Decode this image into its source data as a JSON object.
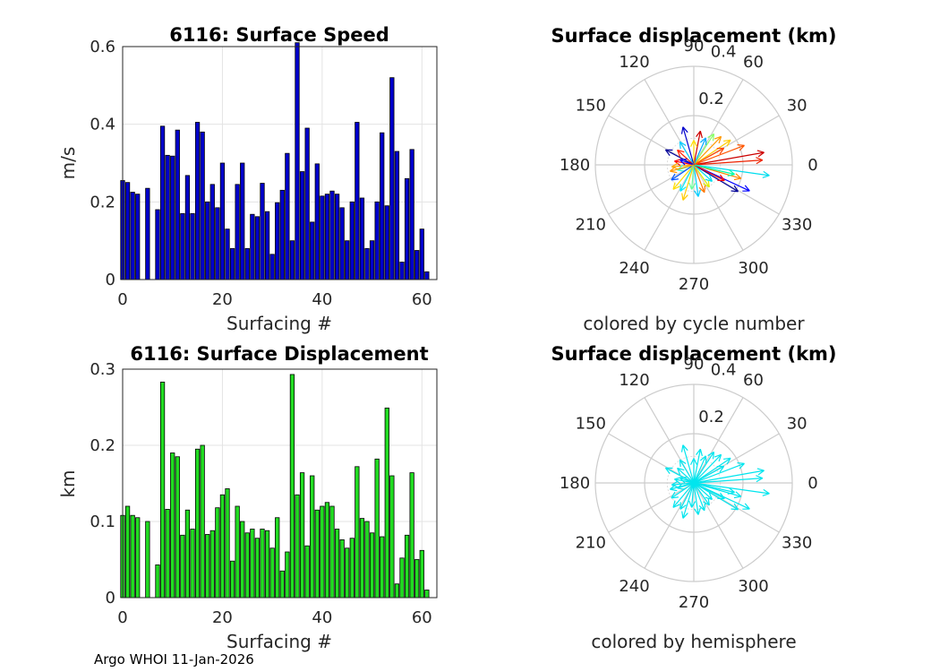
{
  "footer": "Argo WHOI 11-Jan-2026",
  "chart_data": [
    {
      "type": "bar",
      "title": "6116: Surface Speed",
      "xlabel": "Surfacing #",
      "ylabel": "m/s",
      "xlim": [
        0,
        63
      ],
      "ylim": [
        0,
        0.6
      ],
      "xticks": [
        0,
        20,
        40,
        60
      ],
      "yticks": [
        0,
        0.2,
        0.4,
        0.6
      ],
      "ytick_labels": [
        "0",
        "0.2",
        "0.4",
        "0.6"
      ],
      "bar_color": "#0000cc",
      "x": [
        0,
        1,
        2,
        3,
        4,
        5,
        6,
        7,
        8,
        9,
        10,
        11,
        12,
        13,
        14,
        15,
        16,
        17,
        18,
        19,
        20,
        21,
        22,
        23,
        24,
        25,
        26,
        27,
        28,
        29,
        30,
        31,
        32,
        33,
        34,
        35,
        36,
        37,
        38,
        39,
        40,
        41,
        42,
        43,
        44,
        45,
        46,
        47,
        48,
        49,
        50,
        51,
        52,
        53,
        54,
        55,
        56,
        57,
        58,
        59,
        60,
        61
      ],
      "values": [
        0.255,
        0.25,
        0.225,
        0.22,
        0,
        0.235,
        0,
        0.18,
        0.395,
        0.32,
        0.318,
        0.385,
        0.17,
        0.268,
        0.17,
        0.405,
        0.38,
        0.2,
        0.245,
        0.185,
        0.3,
        0.13,
        0.08,
        0.245,
        0.3,
        0.08,
        0.168,
        0.162,
        0.248,
        0.175,
        0.065,
        0.198,
        0.23,
        0.325,
        0.1,
        0.61,
        0.278,
        0.39,
        0.148,
        0.298,
        0.215,
        0.22,
        0.228,
        0.22,
        0.185,
        0.1,
        0.2,
        0.405,
        0.21,
        0.08,
        0.1,
        0.2,
        0.378,
        0.19,
        0.52,
        0.33,
        0.045,
        0.26,
        0.335,
        0.075,
        0.13,
        0.02
      ]
    },
    {
      "type": "bar",
      "title": "6116: Surface Displacement",
      "xlabel": "Surfacing #",
      "ylabel": "km",
      "xlim": [
        0,
        63
      ],
      "ylim": [
        0,
        0.3
      ],
      "xticks": [
        0,
        20,
        40,
        60
      ],
      "yticks": [
        0,
        0.1,
        0.2,
        0.3
      ],
      "ytick_labels": [
        "0",
        "0.1",
        "0.2",
        "0.3"
      ],
      "bar_color": "#22dd22",
      "x": [
        0,
        1,
        2,
        3,
        4,
        5,
        6,
        7,
        8,
        9,
        10,
        11,
        12,
        13,
        14,
        15,
        16,
        17,
        18,
        19,
        20,
        21,
        22,
        23,
        24,
        25,
        26,
        27,
        28,
        29,
        30,
        31,
        32,
        33,
        34,
        35,
        36,
        37,
        38,
        39,
        40,
        41,
        42,
        43,
        44,
        45,
        46,
        47,
        48,
        49,
        50,
        51,
        52,
        53,
        54,
        55,
        56,
        57,
        58,
        59,
        60,
        61
      ],
      "values": [
        0.108,
        0.12,
        0.108,
        0.105,
        0,
        0.1,
        0,
        0.043,
        0.283,
        0.116,
        0.19,
        0.185,
        0.082,
        0.115,
        0.09,
        0.195,
        0.2,
        0.083,
        0.088,
        0.118,
        0.135,
        0.143,
        0.048,
        0.12,
        0.1,
        0.085,
        0.09,
        0.078,
        0.09,
        0.088,
        0.065,
        0.105,
        0.035,
        0.06,
        0.293,
        0.135,
        0.164,
        0.068,
        0.16,
        0.115,
        0.12,
        0.125,
        0.12,
        0.09,
        0.076,
        0.065,
        0.078,
        0.172,
        0.104,
        0.1,
        0.085,
        0.182,
        0.08,
        0.249,
        0.16,
        0.018,
        0.052,
        0.082,
        0.164,
        0.05,
        0.062,
        0.01
      ]
    },
    {
      "type": "polar",
      "title": "Surface displacement (km)",
      "caption": "colored by cycle number",
      "rmax": 0.4,
      "r_tick_labels": [
        "0.2",
        "0.4"
      ],
      "angle_labels": [
        "0",
        "30",
        "60",
        "90",
        "120",
        "150",
        "180",
        "210",
        "240",
        "270",
        "300",
        "330"
      ],
      "arrows": [
        {
          "angle_deg": 10,
          "r": 0.29,
          "color": "#cc0000"
        },
        {
          "angle_deg": 4,
          "r": 0.28,
          "color": "#ee2200"
        },
        {
          "angle_deg": -8,
          "r": 0.31,
          "color": "#00ddee"
        },
        {
          "angle_deg": -16,
          "r": 0.2,
          "color": "#ff8800"
        },
        {
          "angle_deg": -31,
          "r": 0.21,
          "color": "#000099"
        },
        {
          "angle_deg": -25,
          "r": 0.25,
          "color": "#0000ff"
        },
        {
          "angle_deg": 21,
          "r": 0.22,
          "color": "#ff5500"
        },
        {
          "angle_deg": 34,
          "r": 0.18,
          "color": "#ffcc00"
        },
        {
          "angle_deg": 46,
          "r": 0.16,
          "color": "#ff9900"
        },
        {
          "angle_deg": 57,
          "r": 0.15,
          "color": "#88ff66"
        },
        {
          "angle_deg": 66,
          "r": 0.12,
          "color": "#00aaff"
        },
        {
          "angle_deg": 79,
          "r": 0.14,
          "color": "#cc0000"
        },
        {
          "angle_deg": 90,
          "r": 0.1,
          "color": "#ffdd00"
        },
        {
          "angle_deg": 106,
          "r": 0.16,
          "color": "#0000cc"
        },
        {
          "angle_deg": 121,
          "r": 0.11,
          "color": "#00ccff"
        },
        {
          "angle_deg": 138,
          "r": 0.09,
          "color": "#ff2200"
        },
        {
          "angle_deg": 152,
          "r": 0.13,
          "color": "#000099"
        },
        {
          "angle_deg": 169,
          "r": 0.08,
          "color": "#ff0000"
        },
        {
          "angle_deg": 185,
          "r": 0.09,
          "color": "#ffaa00"
        },
        {
          "angle_deg": 198,
          "r": 0.07,
          "color": "#33ffcc"
        },
        {
          "angle_deg": 214,
          "r": 0.11,
          "color": "#0055ff"
        },
        {
          "angle_deg": 230,
          "r": 0.13,
          "color": "#ffdd00"
        },
        {
          "angle_deg": 243,
          "r": 0.12,
          "color": "#00eeff"
        },
        {
          "angle_deg": 253,
          "r": 0.15,
          "color": "#ffcc00"
        },
        {
          "angle_deg": 265,
          "r": 0.1,
          "color": "#66ff99"
        },
        {
          "angle_deg": 278,
          "r": 0.13,
          "color": "#00ccff"
        },
        {
          "angle_deg": 291,
          "r": 0.12,
          "color": "#ff7700"
        },
        {
          "angle_deg": 305,
          "r": 0.11,
          "color": "#ddee00"
        },
        {
          "angle_deg": 318,
          "r": 0.1,
          "color": "#00ddee"
        },
        {
          "angle_deg": 333,
          "r": 0.14,
          "color": "#ff0000"
        },
        {
          "angle_deg": 347,
          "r": 0.17,
          "color": "#00ffaa"
        },
        {
          "angle_deg": 29,
          "r": 0.14,
          "color": "#ff4400"
        },
        {
          "angle_deg": 160,
          "r": 0.06,
          "color": "#0000ff"
        },
        {
          "angle_deg": 195,
          "r": 0.1,
          "color": "#ff9900"
        }
      ]
    },
    {
      "type": "polar",
      "title": "Surface displacement (km)",
      "caption": "colored by hemisphere",
      "rmax": 0.4,
      "r_tick_labels": [
        "0.2",
        "0.4"
      ],
      "angle_labels": [
        "0",
        "30",
        "60",
        "90",
        "120",
        "150",
        "180",
        "210",
        "240",
        "270",
        "300",
        "330"
      ],
      "color": "#00e5ee",
      "arrows": [
        {
          "angle_deg": 10,
          "r": 0.29
        },
        {
          "angle_deg": 4,
          "r": 0.28
        },
        {
          "angle_deg": -8,
          "r": 0.31
        },
        {
          "angle_deg": -16,
          "r": 0.2
        },
        {
          "angle_deg": -31,
          "r": 0.21
        },
        {
          "angle_deg": -25,
          "r": 0.25
        },
        {
          "angle_deg": 21,
          "r": 0.22
        },
        {
          "angle_deg": 34,
          "r": 0.18
        },
        {
          "angle_deg": 46,
          "r": 0.16
        },
        {
          "angle_deg": 57,
          "r": 0.15
        },
        {
          "angle_deg": 66,
          "r": 0.12
        },
        {
          "angle_deg": 79,
          "r": 0.14
        },
        {
          "angle_deg": 90,
          "r": 0.1
        },
        {
          "angle_deg": 106,
          "r": 0.16
        },
        {
          "angle_deg": 121,
          "r": 0.11
        },
        {
          "angle_deg": 138,
          "r": 0.09
        },
        {
          "angle_deg": 152,
          "r": 0.13
        },
        {
          "angle_deg": 169,
          "r": 0.08
        },
        {
          "angle_deg": 185,
          "r": 0.09
        },
        {
          "angle_deg": 198,
          "r": 0.07
        },
        {
          "angle_deg": 214,
          "r": 0.11
        },
        {
          "angle_deg": 230,
          "r": 0.13
        },
        {
          "angle_deg": 243,
          "r": 0.12
        },
        {
          "angle_deg": 253,
          "r": 0.15
        },
        {
          "angle_deg": 265,
          "r": 0.1
        },
        {
          "angle_deg": 278,
          "r": 0.13
        },
        {
          "angle_deg": 291,
          "r": 0.12
        },
        {
          "angle_deg": 305,
          "r": 0.11
        },
        {
          "angle_deg": 318,
          "r": 0.1
        },
        {
          "angle_deg": 333,
          "r": 0.14
        },
        {
          "angle_deg": 347,
          "r": 0.17
        },
        {
          "angle_deg": 29,
          "r": 0.14
        },
        {
          "angle_deg": 160,
          "r": 0.06
        },
        {
          "angle_deg": 195,
          "r": 0.1
        }
      ]
    }
  ]
}
